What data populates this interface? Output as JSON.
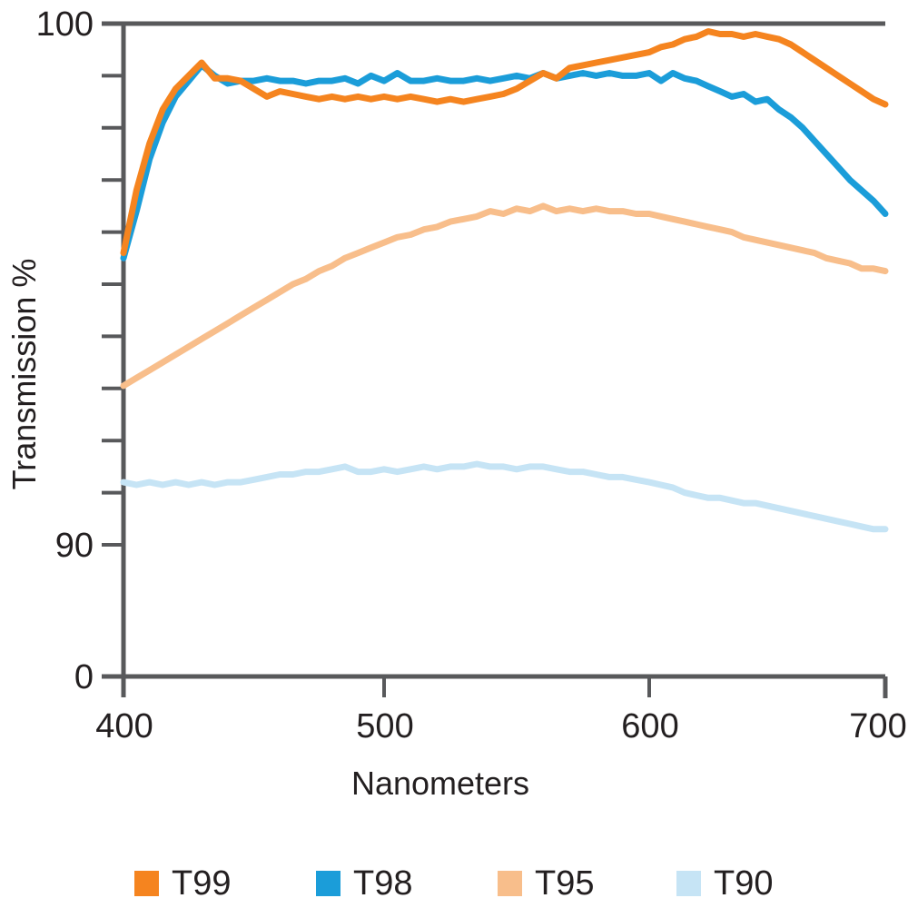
{
  "chart_data": {
    "type": "line",
    "title": "",
    "xlabel": "Nanometers",
    "ylabel": "Transmission %",
    "x_ticks": [
      400,
      500,
      600,
      700
    ],
    "y_axis": {
      "labeled_ticks": [
        100,
        90,
        0
      ],
      "unlabeled_minor_ticks": [
        99,
        98,
        97,
        96,
        95,
        94,
        93,
        92,
        91
      ],
      "scale_break": "axis compressed between 0 and 90",
      "range_shown": [
        0,
        100
      ]
    },
    "grid": false,
    "legend_position": "bottom",
    "axis_color": "#58595B",
    "text_color": "#231F20",
    "background": "#FFFFFF",
    "x": [
      400,
      405,
      410,
      415,
      420,
      425,
      430,
      435,
      440,
      445,
      450,
      455,
      460,
      465,
      470,
      475,
      480,
      485,
      490,
      495,
      500,
      505,
      510,
      515,
      520,
      525,
      530,
      535,
      540,
      545,
      550,
      555,
      560,
      565,
      570,
      575,
      580,
      585,
      590,
      595,
      600,
      605,
      610,
      615,
      620,
      625,
      630,
      635,
      640,
      645,
      650,
      655,
      660,
      665,
      670,
      675,
      680,
      685,
      690,
      695,
      700
    ],
    "series": [
      {
        "name": "T99",
        "color": "#F5841F",
        "values": [
          95.6,
          96.8,
          97.7,
          98.35,
          98.75,
          99.0,
          99.25,
          98.95,
          98.95,
          98.9,
          98.75,
          98.6,
          98.7,
          98.65,
          98.6,
          98.55,
          98.6,
          98.55,
          98.6,
          98.55,
          98.6,
          98.55,
          98.6,
          98.55,
          98.5,
          98.55,
          98.5,
          98.55,
          98.6,
          98.65,
          98.75,
          98.9,
          99.05,
          98.95,
          99.15,
          99.2,
          99.25,
          99.3,
          99.35,
          99.4,
          99.45,
          99.55,
          99.6,
          99.7,
          99.75,
          99.85,
          99.8,
          99.8,
          99.75,
          99.8,
          99.75,
          99.7,
          99.6,
          99.45,
          99.3,
          99.15,
          99.0,
          98.85,
          98.7,
          98.55,
          98.45
        ]
      },
      {
        "name": "T98",
        "color": "#1B9DD9",
        "values": [
          95.5,
          96.4,
          97.4,
          98.1,
          98.6,
          98.9,
          99.2,
          99.0,
          98.85,
          98.9,
          98.9,
          98.95,
          98.9,
          98.9,
          98.85,
          98.9,
          98.9,
          98.95,
          98.85,
          99.0,
          98.9,
          99.05,
          98.9,
          98.9,
          98.95,
          98.9,
          98.9,
          98.95,
          98.9,
          98.95,
          99.0,
          98.95,
          99.05,
          98.95,
          99.0,
          99.05,
          99.0,
          99.05,
          99.0,
          99.0,
          99.05,
          98.9,
          99.05,
          98.95,
          98.9,
          98.8,
          98.7,
          98.6,
          98.65,
          98.5,
          98.55,
          98.35,
          98.2,
          98.0,
          97.75,
          97.5,
          97.25,
          97.0,
          96.8,
          96.6,
          96.35
        ]
      },
      {
        "name": "T95",
        "color": "#F8BE8B",
        "values": [
          93.05,
          93.2,
          93.35,
          93.5,
          93.65,
          93.8,
          93.95,
          94.1,
          94.25,
          94.4,
          94.55,
          94.7,
          94.85,
          95.0,
          95.1,
          95.25,
          95.35,
          95.5,
          95.6,
          95.7,
          95.8,
          95.9,
          95.95,
          96.05,
          96.1,
          96.2,
          96.25,
          96.3,
          96.4,
          96.35,
          96.45,
          96.4,
          96.5,
          96.4,
          96.45,
          96.4,
          96.45,
          96.4,
          96.4,
          96.35,
          96.35,
          96.3,
          96.25,
          96.2,
          96.15,
          96.1,
          96.05,
          96.0,
          95.9,
          95.85,
          95.8,
          95.75,
          95.7,
          95.65,
          95.6,
          95.5,
          95.45,
          95.4,
          95.3,
          95.3,
          95.25
        ]
      },
      {
        "name": "T90",
        "color": "#C6E4F5",
        "values": [
          91.2,
          91.15,
          91.2,
          91.15,
          91.2,
          91.15,
          91.2,
          91.15,
          91.2,
          91.2,
          91.25,
          91.3,
          91.35,
          91.35,
          91.4,
          91.4,
          91.45,
          91.5,
          91.4,
          91.4,
          91.45,
          91.4,
          91.45,
          91.5,
          91.45,
          91.5,
          91.5,
          91.55,
          91.5,
          91.5,
          91.45,
          91.5,
          91.5,
          91.45,
          91.4,
          91.4,
          91.35,
          91.3,
          91.3,
          91.25,
          91.2,
          91.15,
          91.1,
          91.0,
          90.95,
          90.9,
          90.9,
          90.85,
          90.8,
          90.8,
          90.75,
          90.7,
          90.65,
          90.6,
          90.55,
          90.5,
          90.45,
          90.4,
          90.35,
          90.3,
          90.3
        ]
      }
    ]
  },
  "labels": {
    "y_axis": "Transmission %",
    "x_axis": "Nanometers"
  },
  "legend": {
    "items": [
      {
        "label": "T99"
      },
      {
        "label": "T98"
      },
      {
        "label": "T95"
      },
      {
        "label": "T90"
      }
    ]
  }
}
